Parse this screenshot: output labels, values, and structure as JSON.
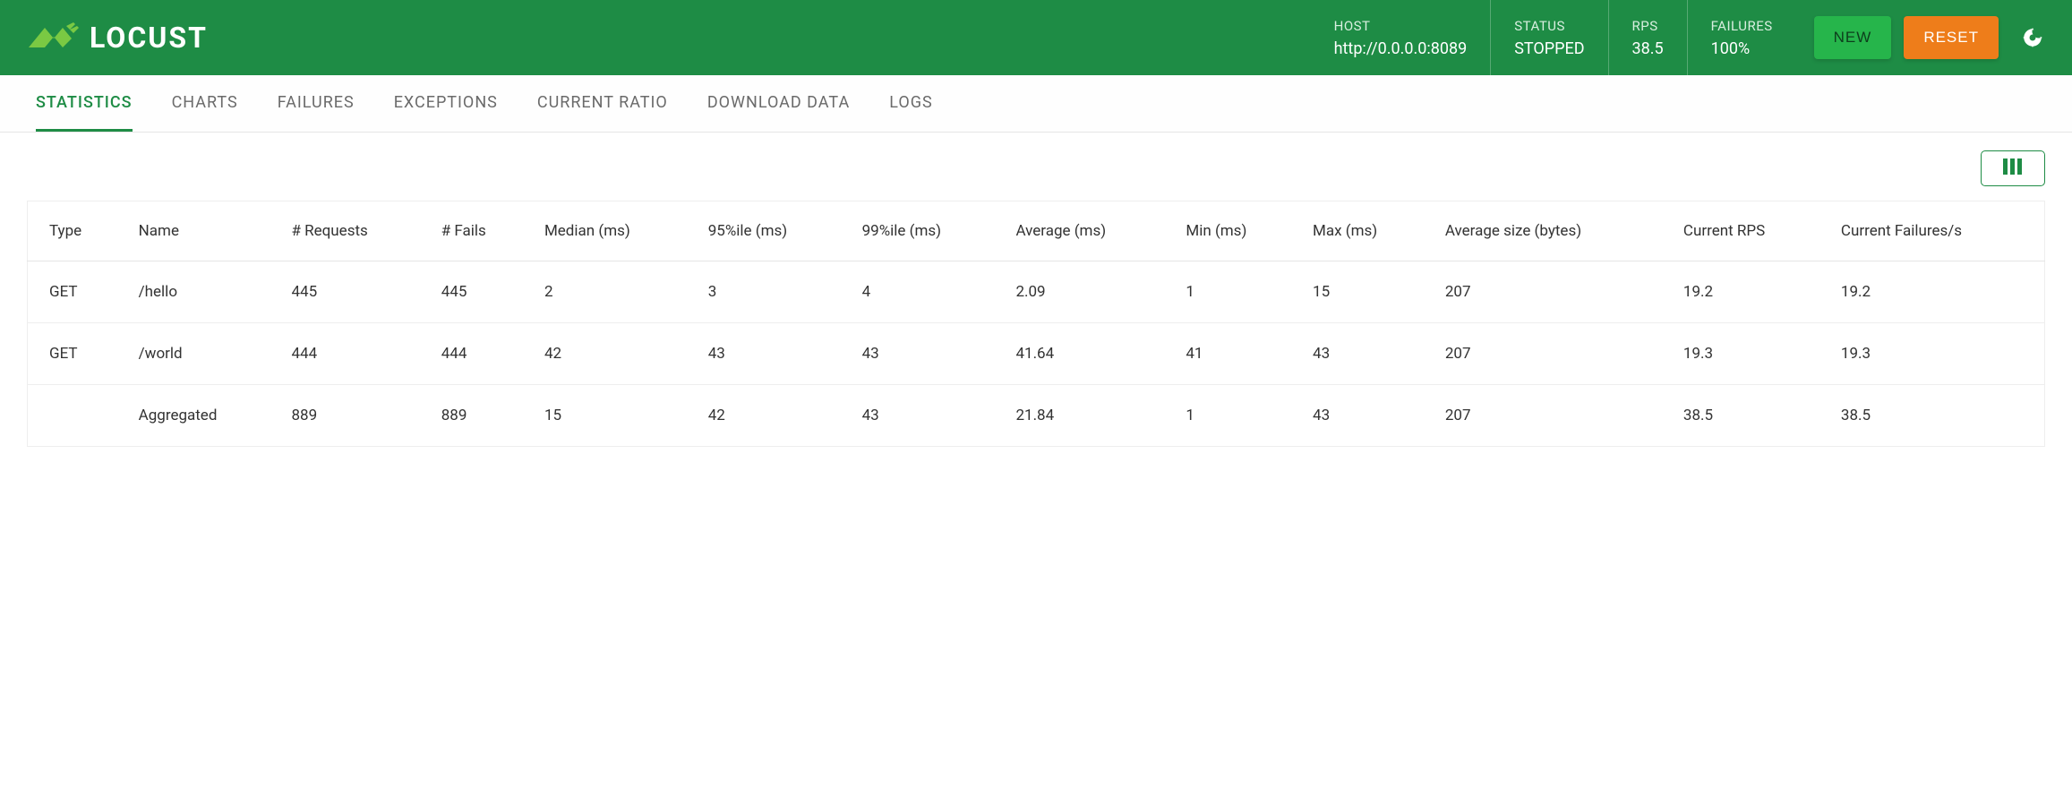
{
  "brand": "LOCUST",
  "header": {
    "host": {
      "label": "HOST",
      "value": "http://0.0.0.0:8089"
    },
    "status": {
      "label": "STATUS",
      "value": "STOPPED"
    },
    "rps": {
      "label": "RPS",
      "value": "38.5"
    },
    "failures": {
      "label": "FAILURES",
      "value": "100%"
    },
    "new_button": "NEW",
    "reset_button": "RESET"
  },
  "tabs": {
    "statistics": "STATISTICS",
    "charts": "CHARTS",
    "failures": "FAILURES",
    "exceptions": "EXCEPTIONS",
    "current_ratio": "CURRENT RATIO",
    "download_data": "DOWNLOAD DATA",
    "logs": "LOGS"
  },
  "table": {
    "columns": {
      "type": "Type",
      "name": "Name",
      "requests": "# Requests",
      "fails": "# Fails",
      "median": "Median (ms)",
      "p95": "95%ile (ms)",
      "p99": "99%ile (ms)",
      "avg": "Average (ms)",
      "min": "Min (ms)",
      "max": "Max (ms)",
      "avg_size": "Average size (bytes)",
      "current_rps": "Current RPS",
      "current_fails": "Current Failures/s"
    },
    "rows": [
      {
        "type": "GET",
        "name": "/hello",
        "requests": "445",
        "fails": "445",
        "median": "2",
        "p95": "3",
        "p99": "4",
        "avg": "2.09",
        "min": "1",
        "max": "15",
        "avg_size": "207",
        "current_rps": "19.2",
        "current_fails": "19.2"
      },
      {
        "type": "GET",
        "name": "/world",
        "requests": "444",
        "fails": "444",
        "median": "42",
        "p95": "43",
        "p99": "43",
        "avg": "41.64",
        "min": "41",
        "max": "43",
        "avg_size": "207",
        "current_rps": "19.3",
        "current_fails": "19.3"
      },
      {
        "type": "",
        "name": "Aggregated",
        "requests": "889",
        "fails": "889",
        "median": "15",
        "p95": "42",
        "p99": "43",
        "avg": "21.84",
        "min": "1",
        "max": "43",
        "avg_size": "207",
        "current_rps": "38.5",
        "current_fails": "38.5"
      }
    ]
  },
  "colors": {
    "primary_green": "#1e8c45",
    "button_green": "#26b54b",
    "button_orange": "#ee7d1a",
    "logo_green": "#7ac943"
  }
}
